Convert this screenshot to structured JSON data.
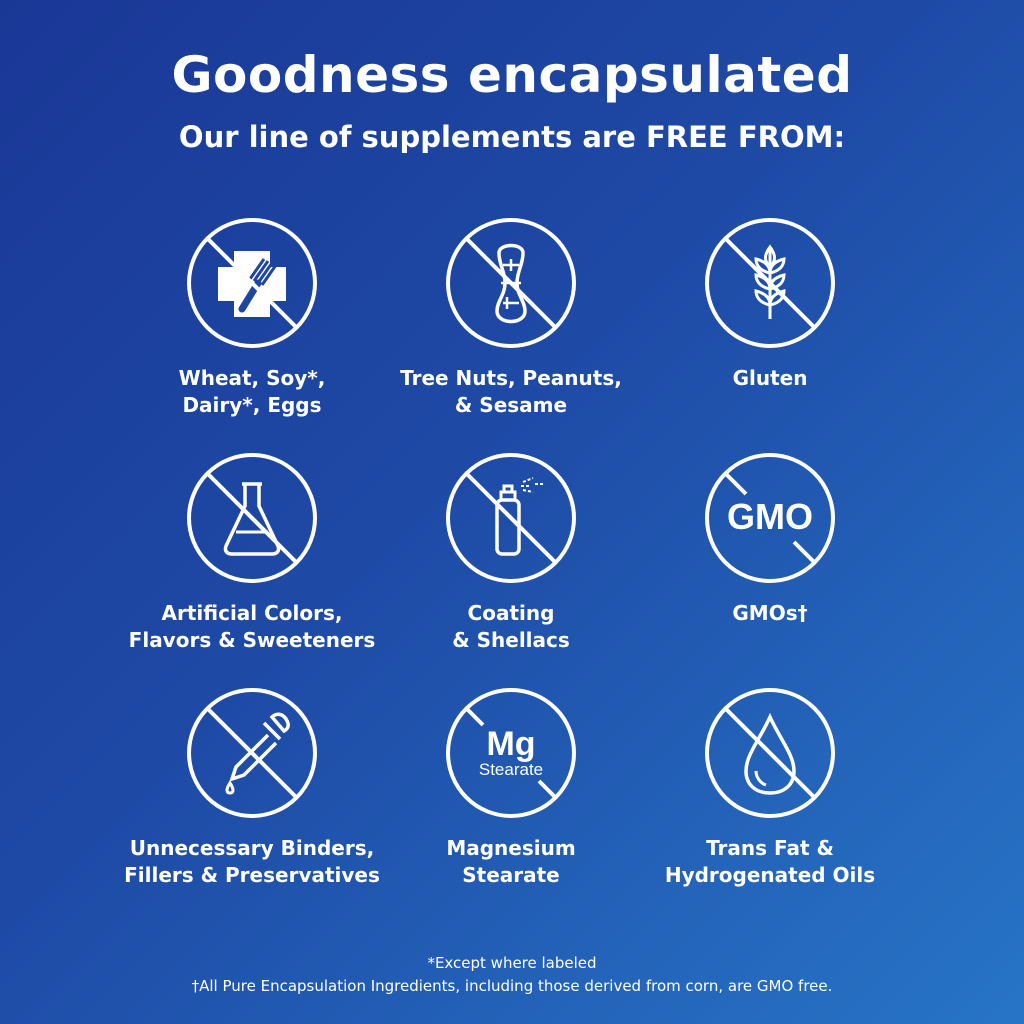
{
  "title": "Goodness encapsulated",
  "subtitle": "Our line of supplements are FREE FROM:",
  "items": [
    {
      "icon": "allergen-cross-fork-icon",
      "line1": "Wheat, Soy*,",
      "line2": "Dairy*, Eggs"
    },
    {
      "icon": "peanut-icon",
      "line1": "Tree Nuts, Peanuts,",
      "line2": "& Sesame"
    },
    {
      "icon": "wheat-icon",
      "line1": "Gluten",
      "line2": ""
    },
    {
      "icon": "flask-icon",
      "line1": "Artificial Colors,",
      "line2": "Flavors & Sweeteners"
    },
    {
      "icon": "spray-can-icon",
      "line1": "Coating",
      "line2": "& Shellacs"
    },
    {
      "icon": "gmo-icon",
      "icon_text": "GMO",
      "line1": "GMOs†",
      "line2": ""
    },
    {
      "icon": "dropper-icon",
      "line1": "Unnecessary Binders,",
      "line2": "Fillers & Preservatives"
    },
    {
      "icon": "mg-stearate-icon",
      "icon_text": "Mg",
      "icon_subtext": "Stearate",
      "line1": "Magnesium",
      "line2": "Stearate"
    },
    {
      "icon": "oil-drop-icon",
      "line1": "Trans Fat &",
      "line2": "Hydrogenated Oils"
    }
  ],
  "footnotes": [
    "*Except where labeled",
    "†All Pure Encapsulation Ingredients, including those derived from corn, are GMO free."
  ],
  "colors": {
    "background_start": "#1a3796",
    "background_end": "#2774c6",
    "foreground": "#ffffff"
  }
}
